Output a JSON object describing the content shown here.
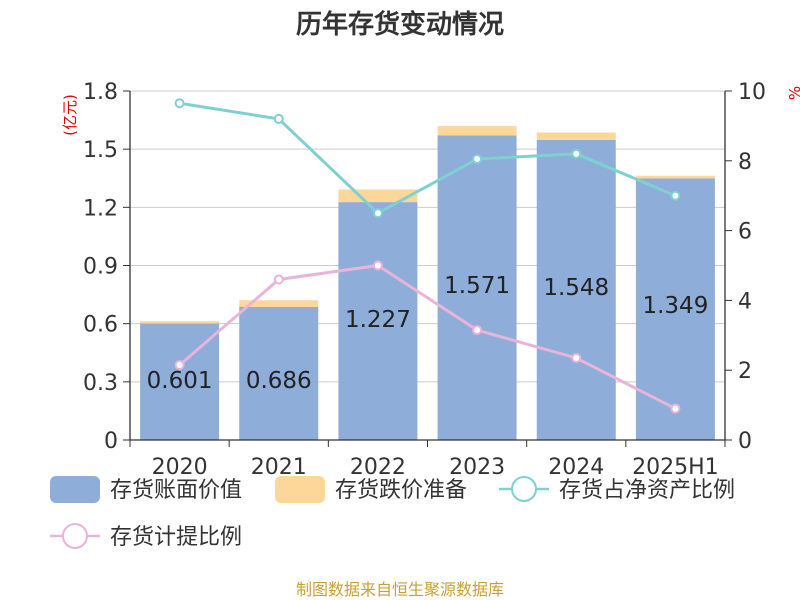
{
  "chart_data": {
    "type": "bar",
    "title": "历年存货变动情况",
    "categories": [
      "2020",
      "2021",
      "2022",
      "2023",
      "2024",
      "2025H1"
    ],
    "left_axis": {
      "unit_label": "(亿元)",
      "ticks": [
        "0",
        "0.3",
        "0.6",
        "0.9",
        "1.2",
        "1.5",
        "1.8"
      ],
      "ylim": [
        0,
        1.8
      ]
    },
    "right_axis": {
      "unit_label": "%",
      "ticks": [
        "0",
        "2",
        "4",
        "6",
        "8",
        "10"
      ],
      "ylim": [
        0,
        10
      ]
    },
    "series": [
      {
        "name": "存货账面价值",
        "kind": "bar",
        "axis": "left",
        "color": "#8eadd9",
        "values": [
          0.601,
          0.686,
          1.227,
          1.571,
          1.548,
          1.349
        ],
        "labels": [
          "0.601",
          "0.686",
          "1.227",
          "1.571",
          "1.548",
          "1.349"
        ]
      },
      {
        "name": "存货跌价准备",
        "kind": "bar-stacked",
        "axis": "left",
        "color": "#fcd799",
        "values": [
          0.012,
          0.035,
          0.065,
          0.048,
          0.038,
          0.014
        ]
      },
      {
        "name": "存货占净资产比例",
        "kind": "line",
        "axis": "right",
        "color": "#7fd1d1",
        "values": [
          9.65,
          9.2,
          6.5,
          8.05,
          8.2,
          7.0
        ]
      },
      {
        "name": "存货计提比例",
        "kind": "line",
        "axis": "right",
        "color": "#e8b4da",
        "values": [
          2.15,
          4.6,
          5.0,
          3.15,
          2.35,
          0.9
        ]
      }
    ],
    "grid": true,
    "legend": "bottom"
  },
  "source": "制图数据来自恒生聚源数据库"
}
